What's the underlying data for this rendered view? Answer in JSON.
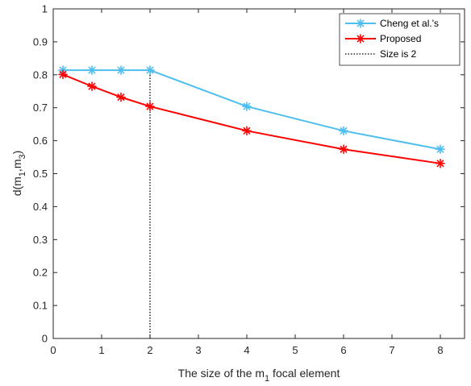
{
  "chart_data": {
    "type": "line",
    "xlabel": {
      "main": "The size of the m",
      "sub": "1",
      "rest": " focal element"
    },
    "ylabel": {
      "a": "d(m",
      "sub1": "1",
      "b": ",m",
      "sub2": "3",
      "c": ")"
    },
    "xlim": [
      0,
      8.5
    ],
    "ylim": [
      0,
      1
    ],
    "xticks": [
      0,
      1,
      2,
      3,
      4,
      5,
      6,
      7,
      8
    ],
    "xtick_labels": [
      "0",
      "1",
      "2",
      "3",
      "4",
      "5",
      "6",
      "7",
      "8"
    ],
    "yticks": [
      0,
      0.1,
      0.2,
      0.3,
      0.4,
      0.5,
      0.6,
      0.7,
      0.8,
      0.9,
      1
    ],
    "ytick_labels": [
      "0",
      "0.1",
      "0.2",
      "0.3",
      "0.4",
      "0.5",
      "0.6",
      "0.7",
      "0.8",
      "0.9",
      "1"
    ],
    "grid": false,
    "legend_position": "top-right",
    "series": [
      {
        "name": "Cheng et al.'s",
        "color": "#4DBEEE",
        "x": [
          0.2,
          0.8,
          1.4,
          2,
          4,
          6,
          8
        ],
        "y": [
          0.814,
          0.814,
          0.814,
          0.814,
          0.704,
          0.63,
          0.574
        ]
      },
      {
        "name": "Proposed",
        "color": "#FF0000",
        "x": [
          0.2,
          0.8,
          1.4,
          2,
          4,
          6,
          8
        ],
        "y": [
          0.801,
          0.765,
          0.732,
          0.704,
          0.63,
          0.574,
          0.531
        ]
      }
    ],
    "vline": {
      "name": "Size is 2",
      "x": 2,
      "y": [
        0,
        0.814
      ],
      "color": "#000000",
      "style": "dotted"
    }
  }
}
